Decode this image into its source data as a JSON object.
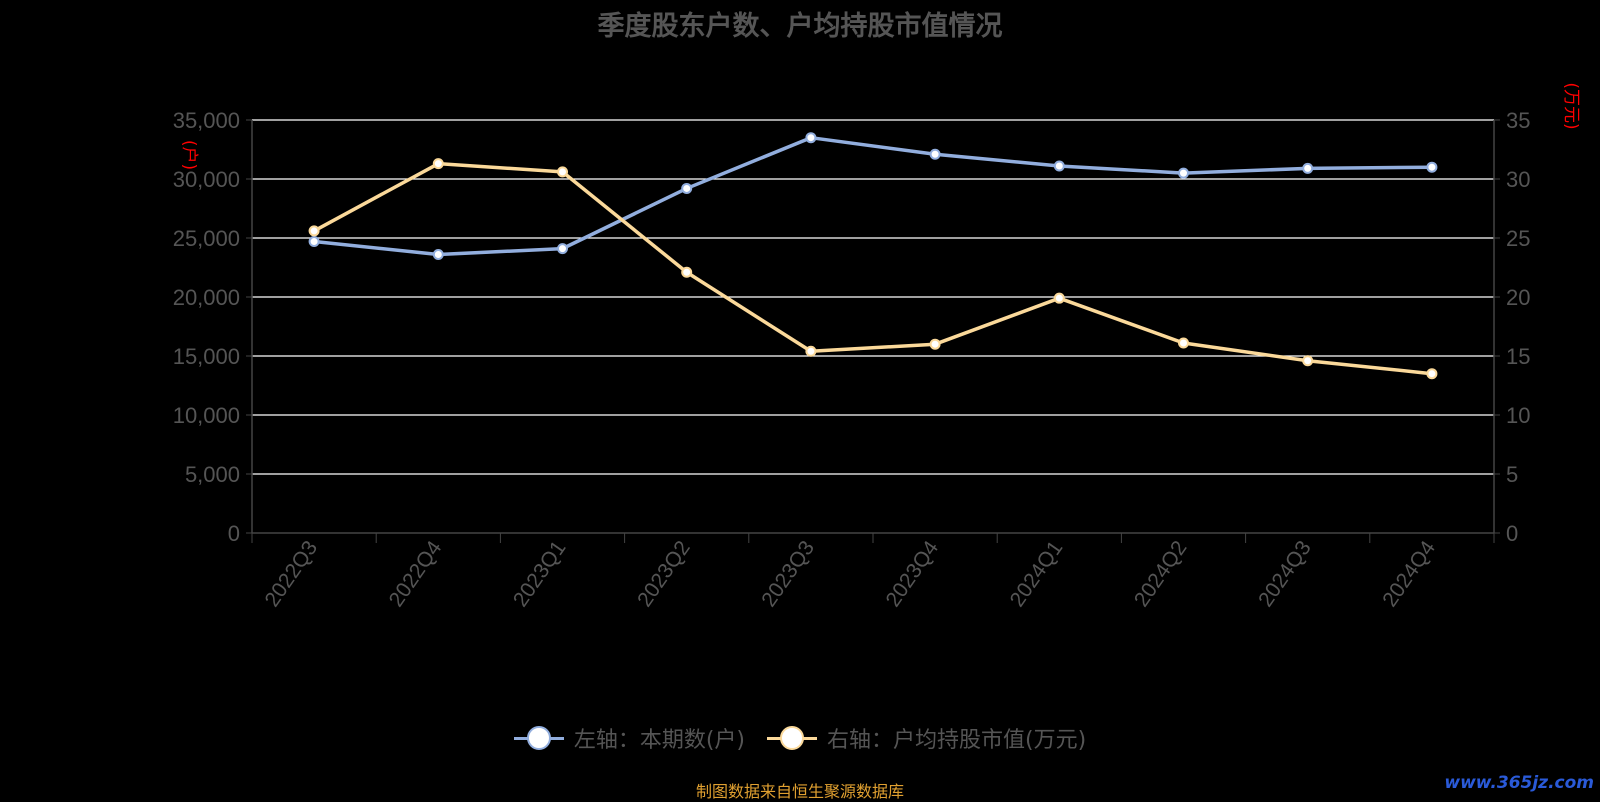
{
  "title": "季度股东户数、户均持股市值情况",
  "source_note": "制图数据来自恒生聚源数据库",
  "watermark": "www.365jz.com",
  "left_axis_unit": "(户)",
  "right_axis_unit": "(万元)",
  "colors": {
    "series_left": "#92aede",
    "series_right": "#fbd99a",
    "axis_text": "#555555",
    "grid": "#ffffff",
    "unit_text": "#ff0000"
  },
  "legend": [
    {
      "label": "左轴：本期数(户)"
    },
    {
      "label": "右轴：户均持股市值(万元)"
    }
  ],
  "chart_data": {
    "type": "line",
    "title": "季度股东户数、户均持股市值情况",
    "categories": [
      "2022Q3",
      "2022Q4",
      "2023Q1",
      "2023Q2",
      "2023Q3",
      "2023Q4",
      "2024Q1",
      "2024Q2",
      "2024Q3",
      "2024Q4"
    ],
    "y_left": {
      "label": "(户)",
      "min": 0,
      "max": 35000,
      "ticks": [
        0,
        5000,
        10000,
        15000,
        20000,
        25000,
        30000,
        35000
      ],
      "tick_labels": [
        "0",
        "5,000",
        "10,000",
        "15,000",
        "20,000",
        "25,000",
        "30,000",
        "35,000"
      ]
    },
    "y_right": {
      "label": "(万元)",
      "min": 0,
      "max": 35,
      "ticks": [
        0,
        5,
        10,
        15,
        20,
        25,
        30,
        35
      ],
      "tick_labels": [
        "0",
        "5",
        "10",
        "15",
        "20",
        "25",
        "30",
        "35"
      ]
    },
    "grid": true,
    "legend_position": "bottom",
    "series": [
      {
        "name": "左轴：本期数(户)",
        "axis": "left",
        "values": [
          24700,
          23600,
          24100,
          29200,
          33500,
          32100,
          31100,
          30500,
          30900,
          31000
        ]
      },
      {
        "name": "右轴：户均持股市值(万元)",
        "axis": "right",
        "values": [
          25.6,
          31.3,
          30.6,
          22.1,
          15.4,
          16.0,
          19.9,
          16.1,
          14.6,
          13.5
        ]
      }
    ]
  }
}
